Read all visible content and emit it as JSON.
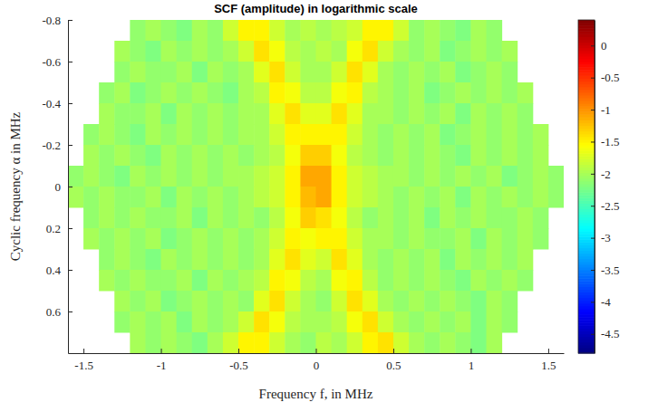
{
  "chart_data": {
    "type": "heatmap",
    "title": "SCF (amplitude) in logarithmic scale",
    "x_label": "Frequency f, in MHz",
    "y_label": "Cyclic frequency α in MHz",
    "xlim": [
      -1.6,
      1.6
    ],
    "xticks": [
      -1.5,
      -1,
      -0.5,
      0,
      0.5,
      1,
      1.5
    ],
    "ylim": [
      -0.8,
      0.8
    ],
    "yticks": [
      -0.8,
      -0.6,
      -0.4,
      -0.2,
      0,
      0.2,
      0.4,
      0.6
    ],
    "x": [
      -1.55,
      -1.45,
      -1.35,
      -1.25,
      -1.15,
      -1.05,
      -0.95,
      -0.85,
      -0.75,
      -0.65,
      -0.55,
      -0.45,
      -0.35,
      -0.25,
      -0.15,
      -0.05,
      0.05,
      0.15,
      0.25,
      0.35,
      0.45,
      0.55,
      0.65,
      0.75,
      0.85,
      0.95,
      1.05,
      1.15,
      1.25,
      1.35,
      1.45,
      1.55
    ],
    "y": [
      -0.75,
      -0.65,
      -0.55,
      -0.45,
      -0.35,
      -0.25,
      -0.15,
      -0.05,
      0.05,
      0.15,
      0.25,
      0.35,
      0.45,
      0.55,
      0.65,
      0.75
    ],
    "z": [
      [
        null,
        null,
        null,
        null,
        -2.1,
        -2.0,
        -2.1,
        -2.2,
        -2.0,
        -2.1,
        -1.8,
        -1.5,
        -1.5,
        -1.8,
        -2.0,
        -1.9,
        -2.0,
        -1.9,
        -1.8,
        -1.5,
        -1.5,
        -1.8,
        -2.1,
        -2.0,
        -2.1,
        -2.2,
        -2.0,
        -2.1,
        null,
        null,
        null,
        null
      ],
      [
        null,
        null,
        null,
        -2.0,
        -2.1,
        -2.2,
        -2.0,
        -2.1,
        -2.0,
        -2.1,
        -2.0,
        -1.8,
        -1.4,
        -1.6,
        -1.9,
        -2.0,
        -1.9,
        -2.0,
        -1.6,
        -1.4,
        -1.8,
        -2.0,
        -2.1,
        -2.0,
        -2.2,
        -2.1,
        -2.0,
        -2.1,
        -2.0,
        null,
        null,
        null
      ],
      [
        null,
        null,
        null,
        -2.1,
        -2.0,
        -2.1,
        -2.1,
        -2.0,
        -2.2,
        -2.0,
        -2.1,
        -2.0,
        -1.7,
        -1.4,
        -1.8,
        -2.0,
        -2.0,
        -1.8,
        -1.4,
        -1.7,
        -2.0,
        -2.1,
        -2.0,
        -2.1,
        -2.0,
        -2.2,
        -2.1,
        -2.0,
        -2.1,
        null,
        null,
        null
      ],
      [
        null,
        null,
        -2.1,
        -2.0,
        -2.2,
        -2.1,
        -2.0,
        -2.1,
        -2.0,
        -2.1,
        -2.2,
        -2.0,
        -1.9,
        -1.5,
        -1.6,
        -1.9,
        -1.9,
        -1.6,
        -1.5,
        -1.9,
        -2.0,
        -2.1,
        -2.0,
        -2.2,
        -2.1,
        -2.0,
        -2.1,
        -2.0,
        -2.1,
        -2.0,
        null,
        null
      ],
      [
        null,
        null,
        -2.0,
        -2.1,
        -2.1,
        -2.0,
        -2.2,
        -2.0,
        -2.1,
        -2.0,
        -2.1,
        -2.0,
        -2.0,
        -1.7,
        -1.4,
        -1.7,
        -1.7,
        -1.4,
        -1.7,
        -2.0,
        -2.0,
        -2.1,
        -2.0,
        -2.1,
        -2.0,
        -2.2,
        -2.0,
        -2.1,
        -2.0,
        -2.1,
        null,
        null
      ],
      [
        null,
        -2.1,
        -2.0,
        -2.1,
        -2.2,
        -2.0,
        -2.1,
        -2.0,
        -2.1,
        -2.0,
        -2.1,
        -2.0,
        -2.0,
        -1.8,
        -1.5,
        -1.5,
        -1.5,
        -1.5,
        -1.8,
        -2.0,
        -2.1,
        -2.0,
        -2.1,
        -2.0,
        -2.2,
        -2.1,
        -2.0,
        -2.1,
        -2.0,
        -2.1,
        -2.0,
        null
      ],
      [
        null,
        -2.0,
        -2.1,
        -2.0,
        -2.1,
        -2.2,
        -2.0,
        -2.1,
        -2.0,
        -2.1,
        -2.0,
        -2.1,
        -2.0,
        -1.9,
        -1.6,
        -1.3,
        -1.3,
        -1.6,
        -1.9,
        -2.0,
        -2.1,
        -2.0,
        -2.1,
        -2.0,
        -2.1,
        -2.2,
        -2.0,
        -2.1,
        -2.0,
        -2.1,
        -2.0,
        null
      ],
      [
        -2.1,
        -2.0,
        -2.1,
        -2.2,
        -2.0,
        -2.1,
        -2.0,
        -2.1,
        -2.0,
        -2.1,
        -2.0,
        -2.0,
        -1.9,
        -1.8,
        -1.5,
        -1.1,
        -1.1,
        -1.5,
        -1.8,
        -1.9,
        -2.0,
        -2.0,
        -2.1,
        -2.0,
        -2.1,
        -2.0,
        -2.1,
        -2.0,
        -2.2,
        -2.1,
        -2.0,
        -2.1
      ],
      [
        -2.0,
        -2.1,
        -2.0,
        -2.1,
        -2.1,
        -2.0,
        -2.2,
        -2.0,
        -2.1,
        -2.0,
        -2.1,
        -2.0,
        -1.9,
        -1.8,
        -1.5,
        -1.2,
        -1.1,
        -1.5,
        -1.8,
        -1.9,
        -2.0,
        -2.1,
        -2.0,
        -2.1,
        -2.0,
        -2.2,
        -2.0,
        -2.1,
        -2.0,
        -2.1,
        -2.0,
        -2.1
      ],
      [
        null,
        -2.1,
        -2.0,
        -2.1,
        -2.0,
        -2.1,
        -2.1,
        -2.0,
        -2.2,
        -2.0,
        -2.1,
        -2.0,
        -2.1,
        -1.9,
        -1.6,
        -1.3,
        -1.4,
        -1.6,
        -1.9,
        -2.1,
        -2.0,
        -2.1,
        -2.0,
        -2.2,
        -2.0,
        -2.1,
        -2.0,
        -2.1,
        -2.1,
        -2.0,
        -2.1,
        null
      ],
      [
        null,
        -2.0,
        -2.1,
        -2.0,
        -2.1,
        -2.0,
        -2.2,
        -2.1,
        -2.0,
        -2.1,
        -2.0,
        -2.1,
        -2.0,
        -1.8,
        -1.5,
        -1.6,
        -1.5,
        -1.5,
        -1.8,
        -2.0,
        -2.0,
        -2.1,
        -2.0,
        -2.1,
        -2.1,
        -2.0,
        -2.2,
        -2.0,
        -2.1,
        -2.0,
        -2.1,
        null
      ],
      [
        null,
        null,
        -2.1,
        -2.0,
        -2.1,
        -2.2,
        -2.0,
        -2.1,
        -2.0,
        -2.1,
        -2.0,
        -2.1,
        -2.0,
        -1.7,
        -1.4,
        -1.7,
        -1.8,
        -1.4,
        -1.7,
        -2.0,
        -2.1,
        -2.0,
        -2.1,
        -2.0,
        -2.2,
        -2.0,
        -2.1,
        -2.0,
        -2.1,
        -2.0,
        null,
        null
      ],
      [
        null,
        null,
        -2.0,
        -2.1,
        -2.0,
        -2.1,
        -2.1,
        -2.0,
        -2.2,
        -2.0,
        -2.1,
        -2.0,
        -1.9,
        -1.5,
        -1.6,
        -1.9,
        -2.0,
        -1.6,
        -1.5,
        -1.9,
        -2.1,
        -2.0,
        -2.1,
        -2.0,
        -2.1,
        -2.2,
        -2.0,
        -2.1,
        -2.0,
        -2.1,
        null,
        null
      ],
      [
        null,
        null,
        null,
        -2.0,
        -2.1,
        -2.0,
        -2.2,
        -2.1,
        -2.0,
        -2.1,
        -2.0,
        -2.1,
        -1.7,
        -1.4,
        -1.8,
        -2.0,
        -2.1,
        -1.8,
        -1.4,
        -1.7,
        -2.0,
        -2.1,
        -2.0,
        -2.1,
        -2.0,
        -2.1,
        -2.2,
        -2.0,
        -2.1,
        null,
        null,
        null
      ],
      [
        null,
        null,
        null,
        -2.1,
        -2.0,
        -2.1,
        -2.0,
        -2.2,
        -2.0,
        -2.1,
        -2.0,
        -1.8,
        -1.4,
        -1.6,
        -1.9,
        -2.0,
        -2.0,
        -1.9,
        -1.6,
        -1.4,
        -1.8,
        -2.0,
        -2.1,
        -2.0,
        -2.1,
        -2.0,
        -2.2,
        -2.0,
        -2.1,
        null,
        null,
        null
      ],
      [
        null,
        null,
        null,
        null,
        -2.0,
        -2.1,
        -2.0,
        -2.1,
        -2.2,
        -2.0,
        -1.8,
        -1.5,
        -1.5,
        -1.8,
        -2.0,
        -2.1,
        -1.9,
        -2.0,
        -1.8,
        -1.5,
        -1.4,
        -1.8,
        -2.0,
        -2.1,
        -2.0,
        -2.1,
        -2.2,
        -2.0,
        null,
        null,
        null,
        null
      ]
    ],
    "colorbar": {
      "range": [
        -4.8,
        0.4
      ],
      "ticks": [
        -4.5,
        -4,
        -3.5,
        -3,
        -2.5,
        -2,
        -1.5,
        -1,
        -0.5,
        0
      ]
    }
  }
}
